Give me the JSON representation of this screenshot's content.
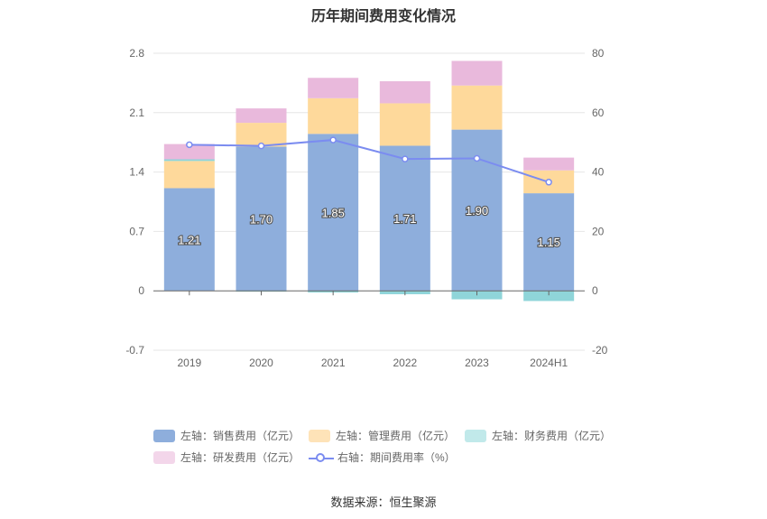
{
  "chart_data": {
    "type": "bar",
    "title": "历年期间费用变化情况",
    "categories": [
      "2019",
      "2020",
      "2021",
      "2022",
      "2023",
      "2024H1"
    ],
    "left_axis": {
      "ylim": [
        -0.7,
        2.8
      ],
      "ticks": [
        "2.8",
        "2.1",
        "1.4",
        "0.7",
        "0",
        "-0.7"
      ],
      "tick_values": [
        2.8,
        2.1,
        1.4,
        0.7,
        0,
        -0.7
      ]
    },
    "right_axis": {
      "ylim": [
        -20,
        80
      ],
      "ticks": [
        "80",
        "60",
        "40",
        "20",
        "0",
        "-20"
      ],
      "tick_values": [
        80,
        60,
        40,
        20,
        0,
        -20
      ]
    },
    "series": [
      {
        "name": "左轴：销售费用（亿元）",
        "axis": "left",
        "kind": "bar",
        "color": "#8eaedc",
        "values": [
          1.21,
          1.7,
          1.85,
          1.71,
          1.9,
          1.15
        ],
        "labels": [
          "1.21",
          "1.70",
          "1.85",
          "1.71",
          "1.90",
          "1.15"
        ]
      },
      {
        "name": "左轴：管理费用（亿元）",
        "axis": "left",
        "kind": "bar",
        "color": "#fed99b",
        "values": [
          0.32,
          0.28,
          0.42,
          0.5,
          0.52,
          0.27
        ]
      },
      {
        "name": "左轴：财务费用（亿元）",
        "axis": "left",
        "kind": "bar",
        "color": "#8fd5d9",
        "values": [
          0.02,
          -0.01,
          -0.02,
          -0.04,
          -0.1,
          -0.12
        ]
      },
      {
        "name": "左轴：研发费用（亿元）",
        "axis": "left",
        "kind": "bar",
        "color": "#e9b9dc",
        "values": [
          0.18,
          0.17,
          0.24,
          0.26,
          0.29,
          0.15
        ]
      },
      {
        "name": "右轴：期间费用率（%）",
        "axis": "right",
        "kind": "line",
        "color": "#7b8cf0",
        "values": [
          49.2,
          48.8,
          50.8,
          44.4,
          44.6,
          36.6
        ]
      }
    ],
    "legend_position": "bottom",
    "grid": true
  },
  "legend": [
    {
      "label": "左轴：销售费用（亿元）",
      "color": "#8eaedc",
      "kind": "box"
    },
    {
      "label": "左轴：管理费用（亿元）",
      "color": "#fee3b8",
      "kind": "box"
    },
    {
      "label": "左轴：财务费用（亿元）",
      "color": "#c1e9ea",
      "kind": "box"
    },
    {
      "label": "左轴：研发费用（亿元）",
      "color": "#f3d6ea",
      "kind": "box"
    },
    {
      "label": "右轴：期间费用率（%）",
      "color": "#7b8cf0",
      "kind": "line"
    }
  ],
  "source": "数据来源：恒生聚源"
}
